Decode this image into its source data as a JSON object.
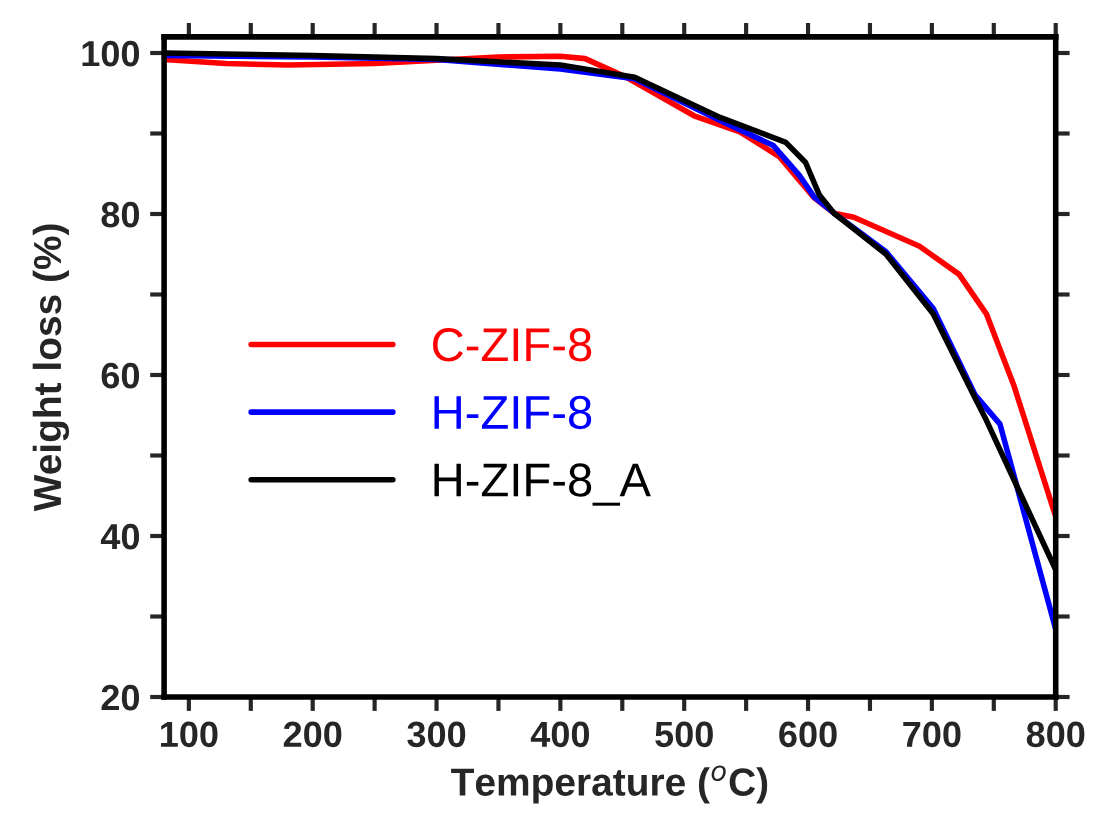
{
  "chart_data": {
    "type": "line",
    "xlabel": "Temperature ($^{o}$C)",
    "ylabel": "Weight loss (%)",
    "xlim": [
      80,
      800
    ],
    "ylim": [
      20,
      102
    ],
    "xticks": [
      100,
      {
        "value": 150,
        "label": null
      },
      200,
      {
        "value": 250,
        "label": null
      },
      300,
      {
        "value": 350,
        "label": null
      },
      400,
      {
        "value": 450,
        "label": null
      },
      500,
      {
        "value": 550,
        "label": null
      },
      600,
      {
        "value": 650,
        "label": null
      },
      700,
      {
        "value": 750,
        "label": null
      },
      800
    ],
    "yticks": [
      20,
      {
        "value": 30,
        "label": null
      },
      40,
      {
        "value": 50,
        "label": null
      },
      60,
      {
        "value": 70,
        "label": null
      },
      80,
      {
        "value": 90,
        "label": null
      },
      100
    ],
    "legend": "center left",
    "grid": false,
    "line_style": "solid",
    "marker": "none",
    "series": [
      {
        "name": "C-ZIF-8",
        "color": "#ff0000",
        "x": [
          80,
          130,
          180,
          250,
          300,
          350,
          400,
          420,
          453,
          508,
          545,
          577,
          605,
          621,
          637,
          690,
          722,
          744,
          758,
          766,
          800
        ],
        "values": [
          99.2,
          98.7,
          98.5,
          98.7,
          99.1,
          99.5,
          99.6,
          99.3,
          97,
          92.2,
          90.2,
          87.1,
          82,
          80.1,
          79.6,
          76,
          72.5,
          67.6,
          62,
          58.8,
          42.4
        ]
      },
      {
        "name": "H-ZIF-8",
        "color": "#0000ff",
        "x": [
          80,
          200,
          300,
          400,
          460,
          529,
          572,
          593,
          605,
          621,
          663,
          701,
          735,
          755,
          800
        ],
        "values": [
          99.7,
          99.5,
          99.2,
          98,
          96.8,
          91.6,
          88.5,
          84.8,
          82.1,
          80.1,
          75.3,
          68.3,
          57.5,
          53.9,
          28.4
        ]
      },
      {
        "name": "H-ZIF-8_A",
        "color": "#000000",
        "x": [
          80,
          200,
          300,
          400,
          460,
          529,
          582,
          598,
          609,
          621,
          663,
          701,
          735,
          743,
          800
        ],
        "values": [
          100,
          99.7,
          99.3,
          98.5,
          97,
          92,
          88.9,
          86.4,
          82.4,
          80.1,
          75,
          67.6,
          57.1,
          54.7,
          35.8
        ]
      }
    ]
  }
}
